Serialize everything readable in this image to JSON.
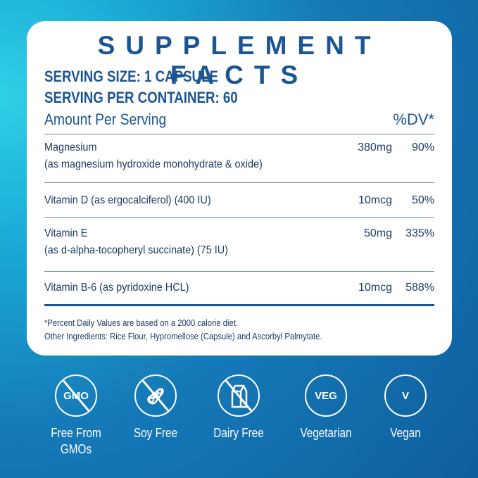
{
  "title": "SUPPLEMENT FACTS",
  "serving_size": "SERVING SIZE: 1 CAPSULE",
  "serving_per_container": "SERVING PER CONTAINER: 60",
  "amount_per_serving": "Amount Per Serving",
  "dv_header": "%DV*",
  "rows": [
    {
      "name": "Magnesium",
      "sub": "(as magnesium hydroxide monohydrate & oxide)",
      "amount": "380mg",
      "dv": "90%"
    },
    {
      "name": "Vitamin D (as ergocalciferol) (400 IU)",
      "sub": "",
      "amount": "10mcg",
      "dv": "50%"
    },
    {
      "name": "Vitamin E",
      "sub": "(as d-alpha-tocopheryl succinate) (75 IU)",
      "amount": "50mg",
      "dv": "335%"
    },
    {
      "name": "Vitamin B-6 (as pyridoxine HCL)",
      "sub": "",
      "amount": "10mcg",
      "dv": "588%"
    }
  ],
  "footnote": "*Percent Daily Values are based on a 2000 calorie diet.",
  "other_ingredients": "Other Ingredients: Rice Flour, Hypromellose (Capsule) and Ascorbyl Palmytate.",
  "badges": [
    {
      "icon": "gmo-crossed-icon",
      "text": "GMO",
      "label": "Free From",
      "label2": "GMOs"
    },
    {
      "icon": "soy-crossed-icon",
      "text": "",
      "label": "Soy Free",
      "label2": ""
    },
    {
      "icon": "milk-carton-crossed-icon",
      "text": "",
      "label": "Dairy Free",
      "label2": ""
    },
    {
      "icon": "veg-icon",
      "text": "VEG",
      "label": "Vegetarian",
      "label2": ""
    },
    {
      "icon": "vegan-v-icon",
      "text": "V",
      "label": "Vegan",
      "label2": ""
    }
  ]
}
